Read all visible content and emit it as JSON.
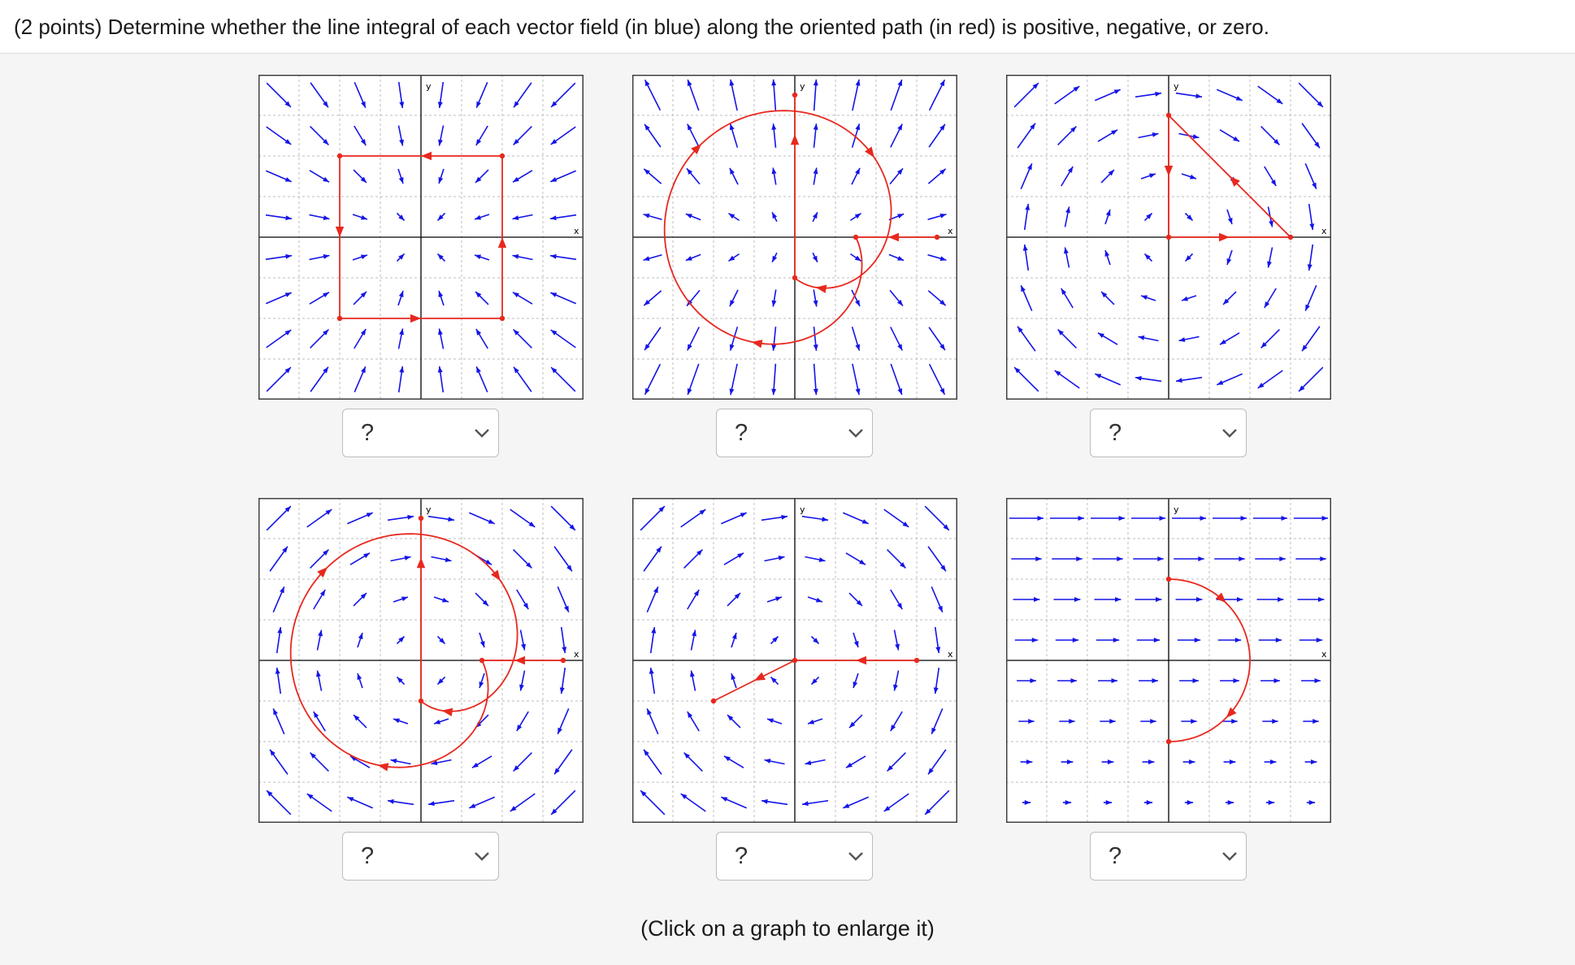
{
  "question": {
    "text": "(2 points) Determine whether the line integral of each vector field (in blue) along the oriented path (in red) is positive, negative, or zero."
  },
  "colors": {
    "field": "#1414e8",
    "path": "#e8281e",
    "axis": "#000000",
    "grid": "#bdbdbd",
    "frame": "#404040"
  },
  "graphs": [
    {
      "id": "graph-1",
      "field_type": "sink",
      "path_type": "square-counterclockwise",
      "x_label": "x",
      "y_label": "y",
      "select_value": "?"
    },
    {
      "id": "graph-2",
      "field_type": "radial-source-vertical-bias",
      "path_type": "spiral-in",
      "x_label": "x",
      "y_label": "y",
      "select_value": "?"
    },
    {
      "id": "graph-3",
      "field_type": "clockwise-rotation",
      "path_type": "triangle",
      "x_label": "x",
      "y_label": "y",
      "select_value": "?"
    },
    {
      "id": "graph-4",
      "field_type": "clockwise-rotation",
      "path_type": "spiral-in",
      "x_label": "x",
      "y_label": "y",
      "select_value": "?"
    },
    {
      "id": "graph-5",
      "field_type": "clockwise-rotation",
      "path_type": "polyline",
      "x_label": "x",
      "y_label": "y",
      "select_value": "?"
    },
    {
      "id": "graph-6",
      "field_type": "uniform-rightward-growing-with-y",
      "path_type": "semicircle-clockwise",
      "x_label": "x",
      "y_label": "y",
      "select_value": "?"
    }
  ],
  "footer": {
    "note": "(Click on a graph to enlarge it)"
  }
}
